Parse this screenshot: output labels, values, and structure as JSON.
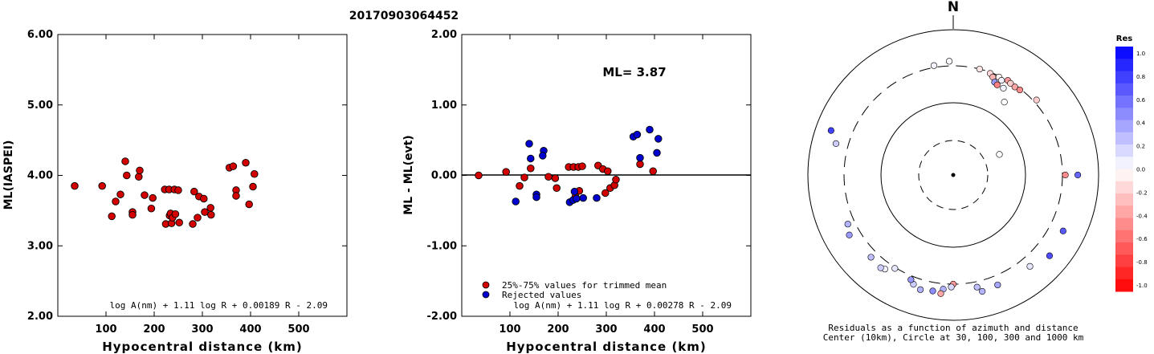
{
  "title": "20170903064452",
  "colors": {
    "trimmed": "#d40000",
    "rejected": "#0000d0",
    "res_pos_max": "#0000ff",
    "res_neg_max": "#ff0000"
  },
  "chart_data": [
    {
      "type": "scatter",
      "id": "ml-vs-distance",
      "xlabel": "Hypocentral distance (km)",
      "ylabel": "ML(IASPEI)",
      "xlim": [
        0,
        600
      ],
      "ylim": [
        2.0,
        6.0
      ],
      "xticks": [
        "100",
        "200",
        "300",
        "400",
        "500"
      ],
      "yticks": [
        "2.00",
        "3.00",
        "4.00",
        "5.00",
        "6.00"
      ],
      "formula": "log A(nm) + 1.11 log R + 0.00189 R - 2.09",
      "points": [
        [
          35,
          3.85
        ],
        [
          92,
          3.85
        ],
        [
          112,
          3.42
        ],
        [
          120,
          3.63
        ],
        [
          130,
          3.73
        ],
        [
          140,
          4.2
        ],
        [
          143,
          4.0
        ],
        [
          155,
          3.48
        ],
        [
          155,
          3.44
        ],
        [
          168,
          3.98
        ],
        [
          170,
          4.07
        ],
        [
          180,
          3.72
        ],
        [
          194,
          3.53
        ],
        [
          197,
          3.68
        ],
        [
          222,
          3.8
        ],
        [
          224,
          3.31
        ],
        [
          231,
          3.8
        ],
        [
          232,
          3.43
        ],
        [
          234,
          3.46
        ],
        [
          236,
          3.32
        ],
        [
          238,
          3.4
        ],
        [
          242,
          3.8
        ],
        [
          244,
          3.45
        ],
        [
          250,
          3.79
        ],
        [
          252,
          3.33
        ],
        [
          280,
          3.31
        ],
        [
          283,
          3.77
        ],
        [
          290,
          3.4
        ],
        [
          293,
          3.7
        ],
        [
          303,
          3.67
        ],
        [
          305,
          3.48
        ],
        [
          317,
          3.54
        ],
        [
          318,
          3.44
        ],
        [
          356,
          4.11
        ],
        [
          364,
          4.13
        ],
        [
          370,
          3.79
        ],
        [
          370,
          3.71
        ],
        [
          390,
          4.18
        ],
        [
          397,
          3.59
        ],
        [
          405,
          3.84
        ],
        [
          408,
          4.02
        ]
      ]
    },
    {
      "type": "scatter",
      "id": "residual-vs-distance",
      "xlabel": "Hypocentral distance (km)",
      "ylabel": "ML - ML(evt)",
      "xlim": [
        0,
        600
      ],
      "ylim": [
        -2.0,
        2.0
      ],
      "xticks": [
        "100",
        "200",
        "300",
        "400",
        "500"
      ],
      "yticks": [
        "-2.00",
        "-1.00",
        "0.00",
        "1.00",
        "2.00"
      ],
      "annotation": "ML= 3.87",
      "formula": "log A(nm) + 1.11 log R + 0.00278 R - 2.09",
      "legend": [
        "25%-75% values for trimmed mean",
        "Rejected values"
      ],
      "series": [
        {
          "name": "25%-75% values for trimmed mean",
          "points": [
            [
              35,
              0.0
            ],
            [
              92,
              0.05
            ],
            [
              120,
              -0.15
            ],
            [
              130,
              -0.03
            ],
            [
              143,
              0.1
            ],
            [
              180,
              -0.02
            ],
            [
              194,
              -0.04
            ],
            [
              197,
              -0.18
            ],
            [
              222,
              0.12
            ],
            [
              232,
              0.12
            ],
            [
              236,
              -0.3
            ],
            [
              242,
              0.12
            ],
            [
              244,
              -0.22
            ],
            [
              250,
              0.13
            ],
            [
              283,
              0.14
            ],
            [
              293,
              0.09
            ],
            [
              298,
              -0.25
            ],
            [
              303,
              0.06
            ],
            [
              308,
              -0.18
            ],
            [
              317,
              -0.14
            ],
            [
              320,
              -0.06
            ],
            [
              370,
              0.16
            ],
            [
              397,
              0.06
            ]
          ]
        },
        {
          "name": "Rejected values",
          "points": [
            [
              112,
              -0.37
            ],
            [
              140,
              0.45
            ],
            [
              143,
              0.24
            ],
            [
              155,
              -0.27
            ],
            [
              155,
              -0.31
            ],
            [
              170,
              0.35
            ],
            [
              168,
              0.28
            ],
            [
              224,
              -0.38
            ],
            [
              231,
              -0.35
            ],
            [
              234,
              -0.23
            ],
            [
              238,
              -0.33
            ],
            [
              252,
              -0.32
            ],
            [
              280,
              -0.32
            ],
            [
              356,
              0.55
            ],
            [
              364,
              0.58
            ],
            [
              370,
              0.25
            ],
            [
              390,
              0.65
            ],
            [
              405,
              0.32
            ],
            [
              408,
              0.52
            ]
          ]
        }
      ]
    },
    {
      "type": "scatter",
      "id": "residuals-azimuth-distance",
      "projection": "polar",
      "north_label": "N",
      "caption_line1": "Residuals as a function of azimuth and distance",
      "caption_line2": "Center (10km), Circle at 30, 100, 300 and 1000 km",
      "rings_km": [
        30,
        100,
        300,
        1000
      ],
      "points_az_dist_res": [
        [
          358,
          350,
          0.02
        ],
        [
          350,
          320,
          0.05
        ],
        [
          14,
          300,
          -0.1
        ],
        [
          20,
          290,
          -0.15
        ],
        [
          22,
          270,
          -0.3
        ],
        [
          25,
          290,
          -0.05
        ],
        [
          27,
          275,
          0.05
        ],
        [
          30,
          300,
          -0.4
        ],
        [
          32,
          290,
          -0.2
        ],
        [
          35,
          285,
          -0.35
        ],
        [
          38,
          290,
          -0.45
        ],
        [
          48,
          330,
          -0.2
        ],
        [
          24,
          240,
          0.4
        ],
        [
          26,
          230,
          -0.5
        ],
        [
          30,
          230,
          0.05
        ],
        [
          35,
          165,
          0.0
        ],
        [
          66,
          50,
          0.0
        ],
        [
          90,
          330,
          -0.45
        ],
        [
          90,
          500,
          0.6
        ],
        [
          117,
          480,
          0.65
        ],
        [
          130,
          520,
          0.7
        ],
        [
          140,
          420,
          0.1
        ],
        [
          180,
          300,
          -0.4
        ],
        [
          181,
          330,
          0.15
        ],
        [
          185,
          360,
          0.3
        ],
        [
          186,
          420,
          -0.35
        ],
        [
          190,
          400,
          0.45
        ],
        [
          196,
          420,
          0.3
        ],
        [
          200,
          380,
          0.2
        ],
        [
          202,
          340,
          0.4
        ],
        [
          168,
          360,
          0.25
        ],
        [
          166,
          430,
          0.3
        ],
        [
          158,
          410,
          0.35
        ],
        [
          212,
          310,
          0.1
        ],
        [
          216,
          380,
          0.05
        ],
        [
          218,
          400,
          0.2
        ],
        [
          225,
          380,
          0.25
        ],
        [
          240,
          430,
          0.4
        ],
        [
          245,
          380,
          0.3
        ],
        [
          285,
          450,
          0.2
        ],
        [
          290,
          600,
          0.75
        ]
      ],
      "colorbar": {
        "title": "Res",
        "ticks": [
          "1.0",
          "0.8",
          "0.6",
          "0.4",
          "0.2",
          "0.0",
          "-0.2",
          "-0.4",
          "-0.6",
          "-0.8",
          "-1.0"
        ]
      }
    }
  ]
}
